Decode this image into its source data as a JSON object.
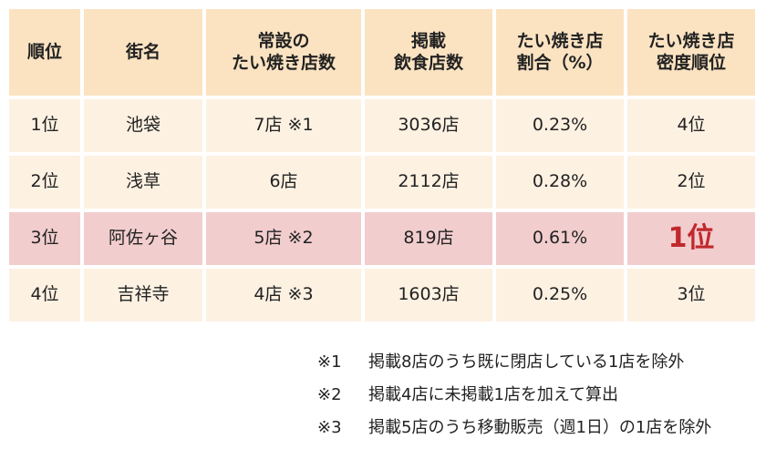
{
  "table": {
    "headers": [
      "順位",
      "街名",
      "常設の\nたい焼き店数",
      "掲載\n飲食店数",
      "たい焼き店\n割合（%）",
      "たい焼き店\n密度順位"
    ],
    "rows": [
      {
        "rank": "1位",
        "town": "池袋",
        "shops": "7店 ※1",
        "listed": "3036店",
        "ratio": "0.23%",
        "density_rank": "4位",
        "highlight": false
      },
      {
        "rank": "2位",
        "town": "浅草",
        "shops": "6店",
        "listed": "2112店",
        "ratio": "0.28%",
        "density_rank": "2位",
        "highlight": false
      },
      {
        "rank": "3位",
        "town": "阿佐ヶ谷",
        "shops": "5店 ※2",
        "listed": "819店",
        "ratio": "0.61%",
        "density_rank": "1位",
        "highlight": true
      },
      {
        "rank": "4位",
        "town": "吉祥寺",
        "shops": "4店 ※3",
        "listed": "1603店",
        "ratio": "0.25%",
        "density_rank": "3位",
        "highlight": false
      }
    ]
  },
  "notes": [
    {
      "mark": "※1",
      "text": "掲載8店のうち既に閉店している1店を除外"
    },
    {
      "mark": "※2",
      "text": "掲載4店に未掲載1店を加えて算出"
    },
    {
      "mark": "※3",
      "text": "掲載5店のうち移動販売（週1日）の1店を除外"
    }
  ],
  "colors": {
    "header_bg": "#fbe3c2",
    "row_bg": "#fdf1e2",
    "highlight_bg": "#f2cdcd",
    "highlight_text": "#c0282d"
  }
}
